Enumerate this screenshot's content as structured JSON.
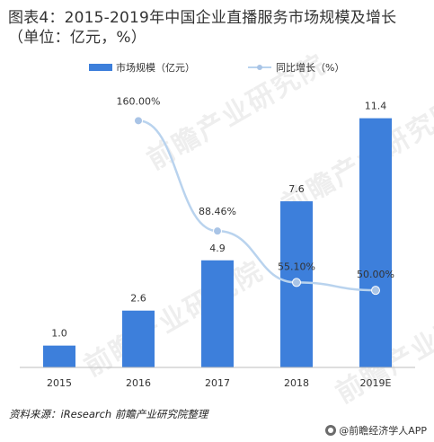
{
  "title": "图表4：2015-2019年中国企业直播服务市场规模及增长（单位：亿元，%）",
  "source_text": "资料来源：iResearch  前瞻产业研究院整理",
  "brand_text": "@前瞻经济学人APP",
  "watermark_text": "前瞻产业研究院",
  "colors": {
    "bar": "#3d7fdb",
    "line": "#b9d3ee",
    "marker": "#a9c4e6",
    "axis": "#bdbdbd"
  },
  "chart_data": {
    "type": "bar",
    "categories": [
      "2015",
      "2016",
      "2017",
      "2018",
      "2019E"
    ],
    "series": [
      {
        "name": "市场规模（亿元）",
        "type": "bar",
        "values": [
          1.0,
          2.6,
          4.9,
          7.6,
          11.4
        ],
        "labels": [
          "1.0",
          "2.6",
          "4.9",
          "7.6",
          "11.4"
        ]
      },
      {
        "name": "同比增长（%）",
        "type": "line",
        "values": [
          null,
          160.0,
          88.46,
          55.1,
          50.0
        ],
        "labels": [
          "",
          "160.00%",
          "88.46%",
          "55.10%",
          "50.00%"
        ]
      }
    ],
    "ylim": [
      0,
      12
    ],
    "y2lim": [
      0,
      180
    ],
    "legend": "top-center",
    "grid": false
  }
}
